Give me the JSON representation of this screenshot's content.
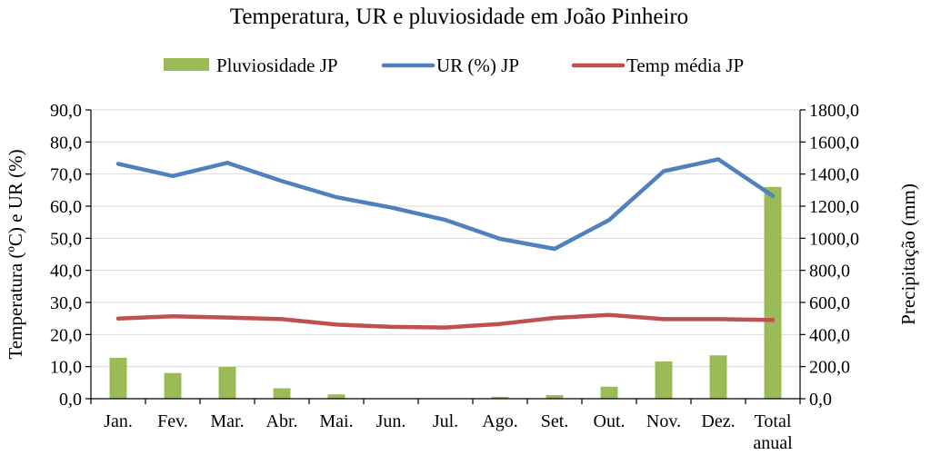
{
  "chart_data": {
    "type": "bar",
    "title": "Temperatura, UR e pluviosidade em João Pinheiro",
    "categories": [
      "Jan.",
      "Fev.",
      "Mar.",
      "Abr.",
      "Mai.",
      "Jun.",
      "Jul.",
      "Ago.",
      "Set.",
      "Out.",
      "Nov.",
      "Dez.",
      "Total anual"
    ],
    "ylabel_left": "Temperatura (ºC) e UR (%)",
    "ylabel_right": "Precipitação (mm)",
    "ylim_left": [
      0,
      90
    ],
    "ylim_right": [
      0,
      1800
    ],
    "yticks_left": [
      "0,0",
      "10,0",
      "20,0",
      "30,0",
      "40,0",
      "50,0",
      "60,0",
      "70,0",
      "80,0",
      "90,0"
    ],
    "yticks_right": [
      "0,0",
      "200,0",
      "400,0",
      "600,0",
      "800,0",
      "1000,0",
      "1200,0",
      "1400,0",
      "1600,0",
      "1800,0"
    ],
    "grid": true,
    "legend_position": "top",
    "series": [
      {
        "name": "Pluviosidade JP",
        "kind": "bar",
        "axis": "right",
        "color": "#9BBB59",
        "values": [
          255,
          160,
          198,
          65,
          27,
          2,
          2,
          12,
          22,
          75,
          232,
          270,
          1320
        ]
      },
      {
        "name": "UR (%) JP",
        "kind": "line",
        "axis": "left",
        "color": "#4F81BD",
        "values": [
          73.2,
          69.4,
          73.5,
          67.8,
          62.8,
          59.6,
          55.7,
          49.8,
          46.7,
          55.7,
          70.9,
          74.6,
          63.2
        ]
      },
      {
        "name": "Temp média JP",
        "kind": "line",
        "axis": "left",
        "color": "#C0504D",
        "values": [
          25.0,
          25.7,
          25.3,
          24.8,
          23.1,
          22.4,
          22.2,
          23.3,
          25.2,
          26.1,
          24.8,
          24.8,
          24.5
        ]
      }
    ]
  }
}
